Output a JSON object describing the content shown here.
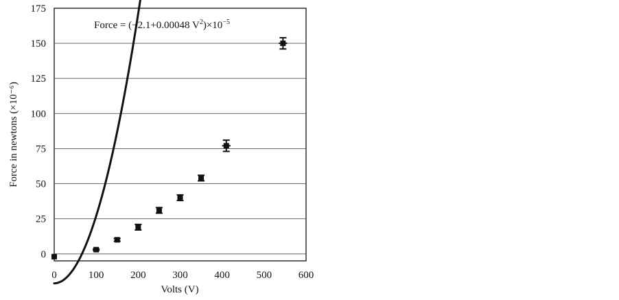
{
  "chart_data": {
    "type": "scatter",
    "xlabel": "Volts (V)",
    "ylabel": "Force in newtons (×10⁻⁶)",
    "xlim": [
      0,
      600
    ],
    "ylim": [
      -5,
      175
    ],
    "x_ticks": [
      0,
      100,
      200,
      300,
      400,
      500,
      600
    ],
    "y_ticks": [
      0,
      25,
      50,
      75,
      100,
      125,
      150,
      175
    ],
    "grid": {
      "horizontal": true,
      "vertical": false
    },
    "equation": {
      "prefix": "Force = (−2.1+0.00048 V",
      "sup1": "2",
      "middle": ")×10",
      "sup2": "−5"
    },
    "series": [
      {
        "kind": "points",
        "x": [
          0,
          100,
          150,
          200,
          250,
          300,
          350,
          410,
          545
        ],
        "y": [
          -2,
          3,
          10,
          19,
          31,
          40,
          54,
          77,
          150
        ],
        "y_error": [
          0,
          0.5,
          1,
          2,
          2,
          2,
          2,
          4,
          4
        ],
        "x_error": [
          0,
          0,
          0,
          0,
          0,
          0,
          0,
          10,
          10
        ],
        "color": "#111111"
      },
      {
        "kind": "fit",
        "x_range": [
          0,
          590
        ],
        "a": -2.1,
        "b": 0.00048,
        "color": "#111111"
      }
    ]
  }
}
